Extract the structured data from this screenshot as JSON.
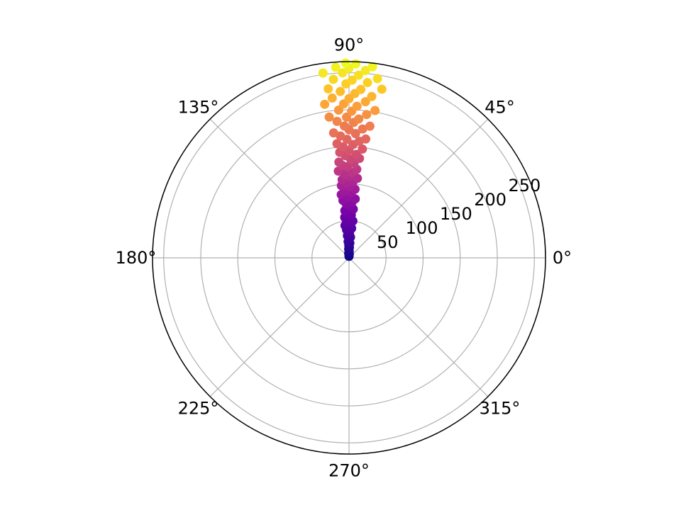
{
  "chart_data": {
    "type": "scatter",
    "projection": "polar",
    "title": "",
    "colormap": "plasma",
    "colormap_stops": [
      "#0d0887",
      "#46039f",
      "#7201a8",
      "#9c179e",
      "#bd3786",
      "#d8576b",
      "#ed7953",
      "#fb9f3a",
      "#fdca26",
      "#f0f921"
    ],
    "theta_ticks": [
      0,
      45,
      90,
      135,
      180,
      225,
      270,
      315
    ],
    "theta_tick_labels": [
      "0°",
      "45°",
      "90°",
      "135°",
      "180°",
      "225°",
      "270°",
      "315°"
    ],
    "r_ticks": [
      50,
      100,
      150,
      200,
      250
    ],
    "r_tick_labels": [
      "50",
      "100",
      "150",
      "200",
      "250"
    ],
    "r_label_angle_deg": 22.5,
    "rlim": [
      0,
      265
    ],
    "grid": true,
    "color_by": "r",
    "points": [
      {
        "theta_deg": 90,
        "r": 2
      },
      {
        "theta_deg": 86,
        "r": 5
      },
      {
        "theta_deg": 94,
        "r": 6
      },
      {
        "theta_deg": 89,
        "r": 9
      },
      {
        "theta_deg": 92,
        "r": 12
      },
      {
        "theta_deg": 88,
        "r": 14
      },
      {
        "theta_deg": 91,
        "r": 17
      },
      {
        "theta_deg": 87,
        "r": 20
      },
      {
        "theta_deg": 93,
        "r": 22
      },
      {
        "theta_deg": 90,
        "r": 25
      },
      {
        "theta_deg": 86,
        "r": 28
      },
      {
        "theta_deg": 94,
        "r": 30
      },
      {
        "theta_deg": 89,
        "r": 33
      },
      {
        "theta_deg": 92,
        "r": 36
      },
      {
        "theta_deg": 95,
        "r": 38
      },
      {
        "theta_deg": 85,
        "r": 40
      },
      {
        "theta_deg": 91,
        "r": 42
      },
      {
        "theta_deg": 97,
        "r": 44
      },
      {
        "theta_deg": 88,
        "r": 46
      },
      {
        "theta_deg": 94,
        "r": 48
      },
      {
        "theta_deg": 84,
        "r": 50
      },
      {
        "theta_deg": 90,
        "r": 53
      },
      {
        "theta_deg": 96,
        "r": 55
      },
      {
        "theta_deg": 87,
        "r": 58
      },
      {
        "theta_deg": 92,
        "r": 60
      },
      {
        "theta_deg": 95,
        "r": 64
      },
      {
        "theta_deg": 85,
        "r": 66
      },
      {
        "theta_deg": 90,
        "r": 70
      },
      {
        "theta_deg": 93,
        "r": 73
      },
      {
        "theta_deg": 87,
        "r": 75
      },
      {
        "theta_deg": 96,
        "r": 78
      },
      {
        "theta_deg": 84,
        "r": 80
      },
      {
        "theta_deg": 91,
        "r": 83
      },
      {
        "theta_deg": 97,
        "r": 86
      },
      {
        "theta_deg": 88,
        "r": 88
      },
      {
        "theta_deg": 94,
        "r": 90
      },
      {
        "theta_deg": 85,
        "r": 93
      },
      {
        "theta_deg": 90,
        "r": 96
      },
      {
        "theta_deg": 96,
        "r": 98
      },
      {
        "theta_deg": 92,
        "r": 101
      },
      {
        "theta_deg": 87,
        "r": 103
      },
      {
        "theta_deg": 95,
        "r": 106
      },
      {
        "theta_deg": 84,
        "r": 108
      },
      {
        "theta_deg": 90,
        "r": 110
      },
      {
        "theta_deg": 93,
        "r": 113
      },
      {
        "theta_deg": 88,
        "r": 115
      },
      {
        "theta_deg": 97,
        "r": 118
      },
      {
        "theta_deg": 85,
        "r": 120
      },
      {
        "theta_deg": 91,
        "r": 123
      },
      {
        "theta_deg": 94,
        "r": 125
      },
      {
        "theta_deg": 87,
        "r": 128
      },
      {
        "theta_deg": 96,
        "r": 130
      },
      {
        "theta_deg": 89,
        "r": 133
      },
      {
        "theta_deg": 84,
        "r": 135
      },
      {
        "theta_deg": 92,
        "r": 138
      },
      {
        "theta_deg": 86,
        "r": 140
      },
      {
        "theta_deg": 95,
        "r": 143
      },
      {
        "theta_deg": 90,
        "r": 145
      },
      {
        "theta_deg": 83,
        "r": 148
      },
      {
        "theta_deg": 93,
        "r": 150
      },
      {
        "theta_deg": 88,
        "r": 153
      },
      {
        "theta_deg": 96,
        "r": 155
      },
      {
        "theta_deg": 85,
        "r": 158
      },
      {
        "theta_deg": 91,
        "r": 160
      },
      {
        "theta_deg": 82,
        "r": 162
      },
      {
        "theta_deg": 94,
        "r": 165
      },
      {
        "theta_deg": 87,
        "r": 168
      },
      {
        "theta_deg": 97,
        "r": 170
      },
      {
        "theta_deg": 90,
        "r": 173
      },
      {
        "theta_deg": 84,
        "r": 175
      },
      {
        "theta_deg": 92,
        "r": 178
      },
      {
        "theta_deg": 81,
        "r": 180
      },
      {
        "theta_deg": 88,
        "r": 183
      },
      {
        "theta_deg": 95,
        "r": 185
      },
      {
        "theta_deg": 86,
        "r": 188
      },
      {
        "theta_deg": 91,
        "r": 190
      },
      {
        "theta_deg": 98,
        "r": 192
      },
      {
        "theta_deg": 83,
        "r": 195
      },
      {
        "theta_deg": 89,
        "r": 198
      },
      {
        "theta_deg": 94,
        "r": 200
      },
      {
        "theta_deg": 80,
        "r": 202
      },
      {
        "theta_deg": 87,
        "r": 205
      },
      {
        "theta_deg": 92,
        "r": 208
      },
      {
        "theta_deg": 99,
        "r": 210
      },
      {
        "theta_deg": 84,
        "r": 212
      },
      {
        "theta_deg": 90,
        "r": 215
      },
      {
        "theta_deg": 96,
        "r": 217
      },
      {
        "theta_deg": 82,
        "r": 220
      },
      {
        "theta_deg": 88,
        "r": 222
      },
      {
        "theta_deg": 93,
        "r": 225
      },
      {
        "theta_deg": 86,
        "r": 228
      },
      {
        "theta_deg": 97,
        "r": 230
      },
      {
        "theta_deg": 79,
        "r": 232
      },
      {
        "theta_deg": 91,
        "r": 235
      },
      {
        "theta_deg": 84,
        "r": 238
      },
      {
        "theta_deg": 89,
        "r": 240
      },
      {
        "theta_deg": 95,
        "r": 242
      },
      {
        "theta_deg": 81,
        "r": 245
      },
      {
        "theta_deg": 87,
        "r": 247
      },
      {
        "theta_deg": 92,
        "r": 250
      },
      {
        "theta_deg": 98,
        "r": 252
      },
      {
        "theta_deg": 85,
        "r": 254
      },
      {
        "theta_deg": 90,
        "r": 256
      },
      {
        "theta_deg": 94,
        "r": 258
      },
      {
        "theta_deg": 83,
        "r": 260
      },
      {
        "theta_deg": 88,
        "r": 262
      },
      {
        "theta_deg": 91,
        "r": 263
      }
    ]
  }
}
